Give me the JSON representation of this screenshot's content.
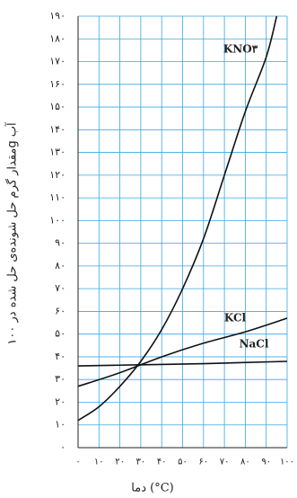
{
  "chart_data": {
    "type": "line",
    "y_label": "مقدار گرم حل شونده‌ی حل شده در ۱۰۰g آب",
    "x_label": "دما (°C)",
    "series": [
      {
        "name": "KNO۳",
        "color": "#111111",
        "x": [
          0,
          10,
          20,
          30,
          40,
          50,
          60,
          70,
          80,
          90,
          95
        ],
        "values": [
          12,
          18,
          27,
          38,
          52,
          70,
          92,
          120,
          148,
          172,
          190
        ]
      },
      {
        "name": "KCl",
        "color": "#111111",
        "x": [
          0,
          20,
          40,
          60,
          80,
          100
        ],
        "values": [
          27,
          33,
          40,
          46,
          51,
          57
        ]
      },
      {
        "name": "NaCl",
        "color": "#111111",
        "x": [
          0,
          30,
          60,
          100
        ],
        "values": [
          36,
          36.5,
          37,
          38
        ]
      }
    ],
    "xlim": [
      0,
      100
    ],
    "ylim": [
      0,
      190
    ],
    "xticks": [
      {
        "value": 0,
        "label": "۰"
      },
      {
        "value": 10,
        "label": "۱۰"
      },
      {
        "value": 20,
        "label": "۲۰"
      },
      {
        "value": 30,
        "label": "۳۰"
      },
      {
        "value": 40,
        "label": "۴۰"
      },
      {
        "value": 50,
        "label": "۵۰"
      },
      {
        "value": 60,
        "label": "۶۰"
      },
      {
        "value": 70,
        "label": "۷۰"
      },
      {
        "value": 80,
        "label": "۸۰"
      },
      {
        "value": 90,
        "label": "۹۰"
      },
      {
        "value": 100,
        "label": "۱۰۰"
      }
    ],
    "yticks": [
      {
        "value": 0,
        "label": "۰"
      },
      {
        "value": 10,
        "label": "۱۰"
      },
      {
        "value": 20,
        "label": "۲۰"
      },
      {
        "value": 30,
        "label": "۳۰"
      },
      {
        "value": 40,
        "label": "۴۰"
      },
      {
        "value": 50,
        "label": "۵۰"
      },
      {
        "value": 60,
        "label": "۶۰"
      },
      {
        "value": 70,
        "label": "۷۰"
      },
      {
        "value": 80,
        "label": "۸۰"
      },
      {
        "value": 90,
        "label": "۹۰"
      },
      {
        "value": 100,
        "label": "۱۰۰"
      },
      {
        "value": 110,
        "label": "۱۱۰"
      },
      {
        "value": 120,
        "label": "۱۲۰"
      },
      {
        "value": 130,
        "label": "۱۳۰"
      },
      {
        "value": 140,
        "label": "۱۴۰"
      },
      {
        "value": 150,
        "label": "۱۵۰"
      },
      {
        "value": 160,
        "label": "۱۶۰"
      },
      {
        "value": 170,
        "label": "۱۷۰"
      },
      {
        "value": 180,
        "label": "۱۸۰"
      },
      {
        "value": 190,
        "label": "۱۹۰"
      }
    ],
    "grid": true,
    "grid_color": "#3aa7e0"
  }
}
